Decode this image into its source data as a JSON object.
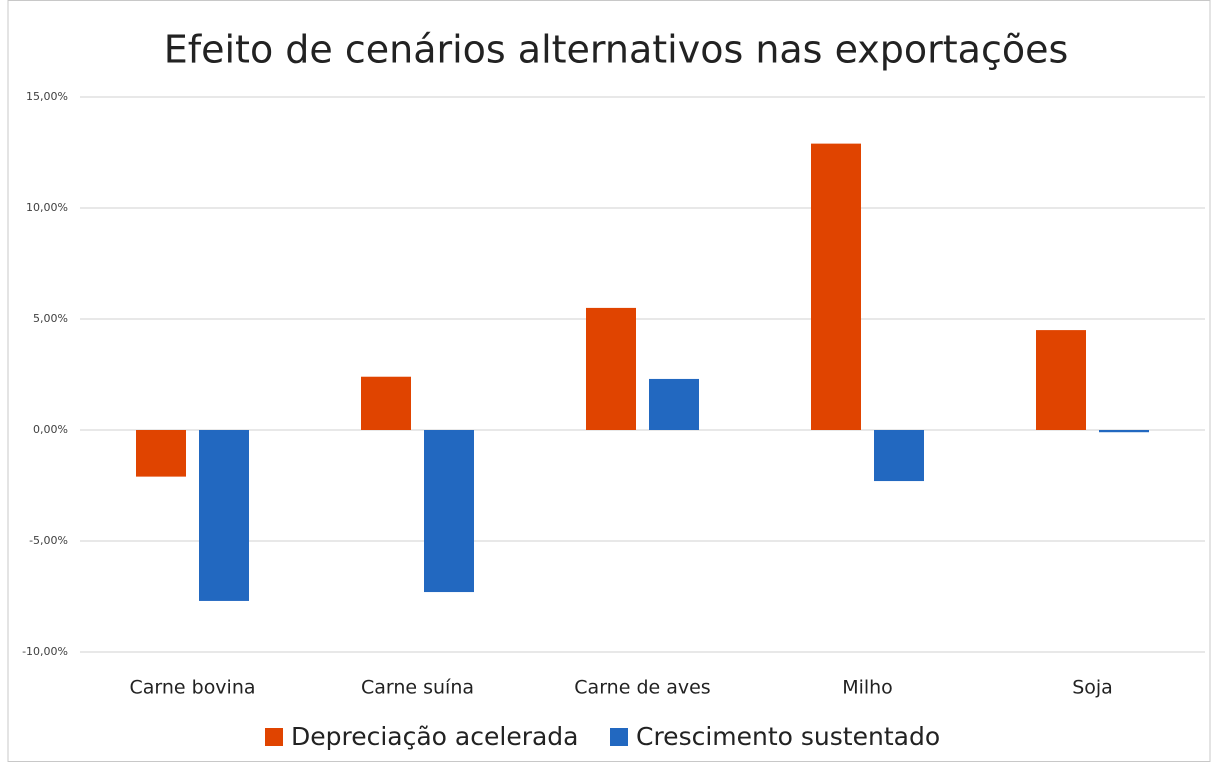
{
  "chart_data": {
    "type": "bar",
    "title": "Efeito de cenários alternativos nas exportações",
    "categories": [
      "Carne bovina",
      "Carne suína",
      "Carne de aves",
      "Milho",
      "Soja"
    ],
    "series": [
      {
        "name": "Depreciação acelerada",
        "color": "#e04400",
        "values": [
          -2.1,
          2.4,
          5.5,
          12.9,
          4.5
        ]
      },
      {
        "name": "Crescimento sustentado",
        "color": "#2268c0",
        "values": [
          -7.7,
          -7.3,
          2.3,
          -2.3,
          -0.1
        ]
      }
    ],
    "ylim": [
      -10,
      15
    ],
    "yticks": [
      {
        "value": -10,
        "label": "-10,00%"
      },
      {
        "value": -5,
        "label": "-5,00%"
      },
      {
        "value": 0,
        "label": "0,00%"
      },
      {
        "value": 5,
        "label": "5,00%"
      },
      {
        "value": 10,
        "label": "10,00%"
      },
      {
        "value": 15,
        "label": "15,00%"
      }
    ],
    "grid": true
  }
}
